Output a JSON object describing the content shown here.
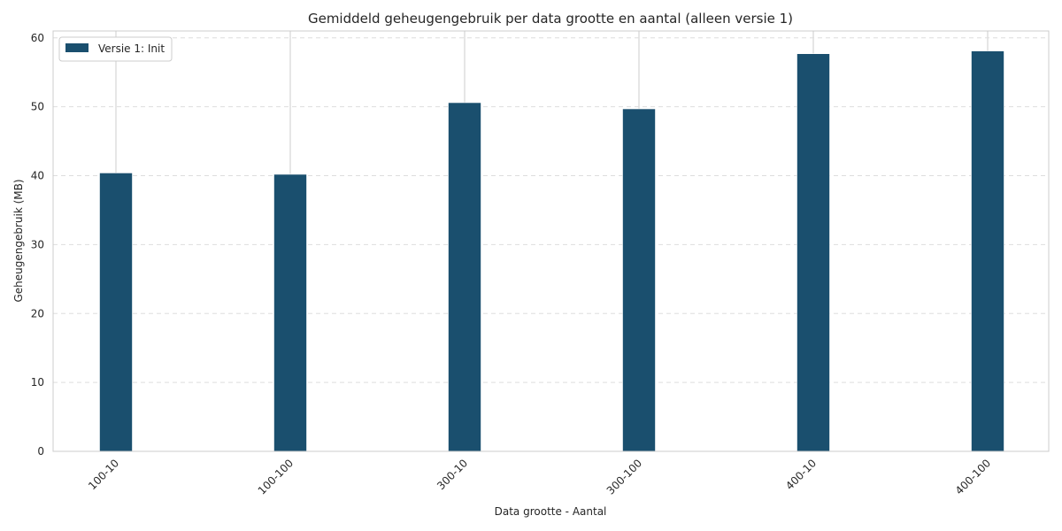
{
  "chart_data": {
    "type": "bar",
    "title": "Gemiddeld geheugengebruik per data grootte en aantal (alleen versie 1)",
    "xlabel": "Data grootte - Aantal",
    "ylabel": "Geheugengebruik (MB)",
    "categories": [
      "100-10",
      "100-100",
      "300-10",
      "300-100",
      "400-10",
      "400-100"
    ],
    "series": [
      {
        "name": "Versie 1: Init",
        "values": [
          40.4,
          40.2,
          50.6,
          49.7,
          57.7,
          58.1
        ],
        "color": "#1a4f6e"
      }
    ],
    "ylim": [
      0,
      61
    ],
    "yticks": [
      0,
      10,
      20,
      30,
      40,
      50,
      60
    ],
    "grid": true,
    "legend_position": "top-left"
  }
}
